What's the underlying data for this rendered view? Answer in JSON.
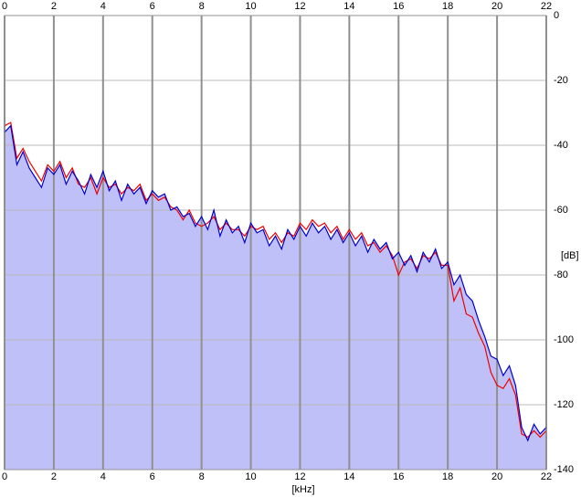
{
  "chart_data": {
    "type": "line",
    "x_label": "[kHz]",
    "y_label": "[dB]",
    "xlim": [
      0,
      22
    ],
    "xticks": [
      0,
      2,
      4,
      6,
      8,
      10,
      12,
      14,
      16,
      18,
      20,
      22
    ],
    "ylim": [
      -140,
      0
    ],
    "yticks": [
      0,
      -20,
      -40,
      -60,
      -80,
      -100,
      -120,
      -140
    ],
    "grid": true,
    "x": [
      0,
      0.25,
      0.5,
      0.75,
      1,
      1.25,
      1.5,
      1.75,
      2,
      2.25,
      2.5,
      2.75,
      3,
      3.25,
      3.5,
      3.75,
      4,
      4.25,
      4.5,
      4.75,
      5,
      5.25,
      5.5,
      5.75,
      6,
      6.25,
      6.5,
      6.75,
      7,
      7.25,
      7.5,
      7.75,
      8,
      8.25,
      8.5,
      8.75,
      9,
      9.25,
      9.5,
      9.75,
      10,
      10.25,
      10.5,
      10.75,
      11,
      11.25,
      11.5,
      11.75,
      12,
      12.25,
      12.5,
      12.75,
      13,
      13.25,
      13.5,
      13.75,
      14,
      14.25,
      14.5,
      14.75,
      15,
      15.25,
      15.5,
      15.75,
      16,
      16.25,
      16.5,
      16.75,
      17,
      17.25,
      17.5,
      17.75,
      18,
      18.25,
      18.5,
      18.75,
      19,
      19.25,
      19.5,
      19.75,
      20,
      20.25,
      20.5,
      20.75,
      21,
      21.25,
      21.5,
      21.75,
      22
    ],
    "series": [
      {
        "color": "#ee0000",
        "values": [
          -34,
          -33,
          -44,
          -41,
          -45,
          -48,
          -51,
          -46,
          -48,
          -45,
          -50,
          -47,
          -52,
          -53,
          -50,
          -55,
          -50,
          -53,
          -52,
          -55,
          -53,
          -54,
          -52,
          -57,
          -55,
          -57,
          -56,
          -59,
          -60,
          -63,
          -60,
          -64,
          -65,
          -64,
          -62,
          -66,
          -64,
          -66,
          -66,
          -68,
          -65,
          -66,
          -65,
          -69,
          -67,
          -70,
          -67,
          -68,
          -64,
          -66,
          -63,
          -65,
          -64,
          -67,
          -65,
          -69,
          -66,
          -69,
          -67,
          -71,
          -70,
          -73,
          -71,
          -74,
          -80,
          -76,
          -75,
          -78,
          -74,
          -75,
          -73,
          -77,
          -77,
          -88,
          -84,
          -92,
          -93,
          -98,
          -102,
          -110,
          -114,
          -115,
          -112,
          -117,
          -129,
          -130,
          -128,
          -130,
          -128
        ]
      },
      {
        "color": "#0000cc",
        "fill": "#c0c0f8",
        "values": [
          -36,
          -34,
          -46,
          -42,
          -47,
          -50,
          -53,
          -47,
          -49,
          -46,
          -52,
          -48,
          -51,
          -55,
          -49,
          -53,
          -48,
          -54,
          -51,
          -57,
          -52,
          -55,
          -53,
          -58,
          -54,
          -56,
          -55,
          -60,
          -59,
          -62,
          -61,
          -65,
          -62,
          -66,
          -60,
          -68,
          -63,
          -67,
          -65,
          -70,
          -64,
          -67,
          -66,
          -71,
          -68,
          -72,
          -66,
          -69,
          -65,
          -68,
          -64,
          -67,
          -65,
          -69,
          -66,
          -70,
          -67,
          -71,
          -68,
          -73,
          -69,
          -72,
          -70,
          -75,
          -73,
          -77,
          -74,
          -79,
          -73,
          -76,
          -72,
          -78,
          -76,
          -83,
          -80,
          -86,
          -88,
          -94,
          -99,
          -105,
          -106,
          -111,
          -108,
          -114,
          -127,
          -131,
          -126,
          -129,
          -127
        ]
      }
    ]
  }
}
